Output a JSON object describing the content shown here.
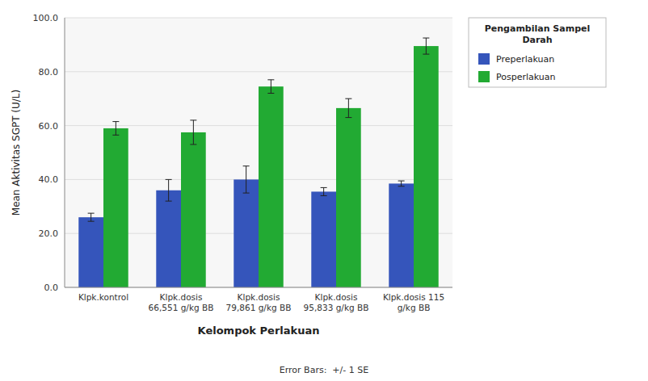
{
  "chart_data": {
    "type": "bar",
    "categories": [
      "Klpk.kontrol",
      "Klpk.dosis\n66,551 g/kg BB",
      "Klpk.dosis\n79,861 g/kg BB",
      "Klpk.dosis\n95,833 g/kg BB",
      "Klpk.dosis 115\ng/kg BB"
    ],
    "series": [
      {
        "name": "Preperlakuan",
        "color": "#3555BB",
        "values": [
          26.0,
          36.0,
          40.0,
          35.5,
          38.5
        ],
        "errors": [
          1.5,
          4.0,
          5.0,
          1.5,
          1.0
        ]
      },
      {
        "name": "Posperlakuan",
        "color": "#22AA33",
        "values": [
          59.0,
          57.5,
          74.5,
          66.5,
          89.5
        ],
        "errors": [
          2.5,
          4.5,
          2.5,
          3.5,
          3.0
        ]
      }
    ],
    "xlabel": "Kelompok Perlakuan",
    "ylabel": "Mean Aktivitas SGPT (U/L)",
    "ylim": [
      0,
      100
    ],
    "yticks": [
      {
        "value": 0,
        "label": "0.0"
      },
      {
        "value": 20,
        "label": "20.0"
      },
      {
        "value": 40,
        "label": "40.0"
      },
      {
        "value": 60,
        "label": "60.0"
      },
      {
        "value": 80,
        "label": "80.0"
      },
      {
        "value": 100,
        "label": "100.0"
      }
    ],
    "grid": true,
    "legend": "right",
    "legend_title": "Pengambilan Sampel\nDarah",
    "footnote": "Error Bars:  +/- 1 SE"
  }
}
